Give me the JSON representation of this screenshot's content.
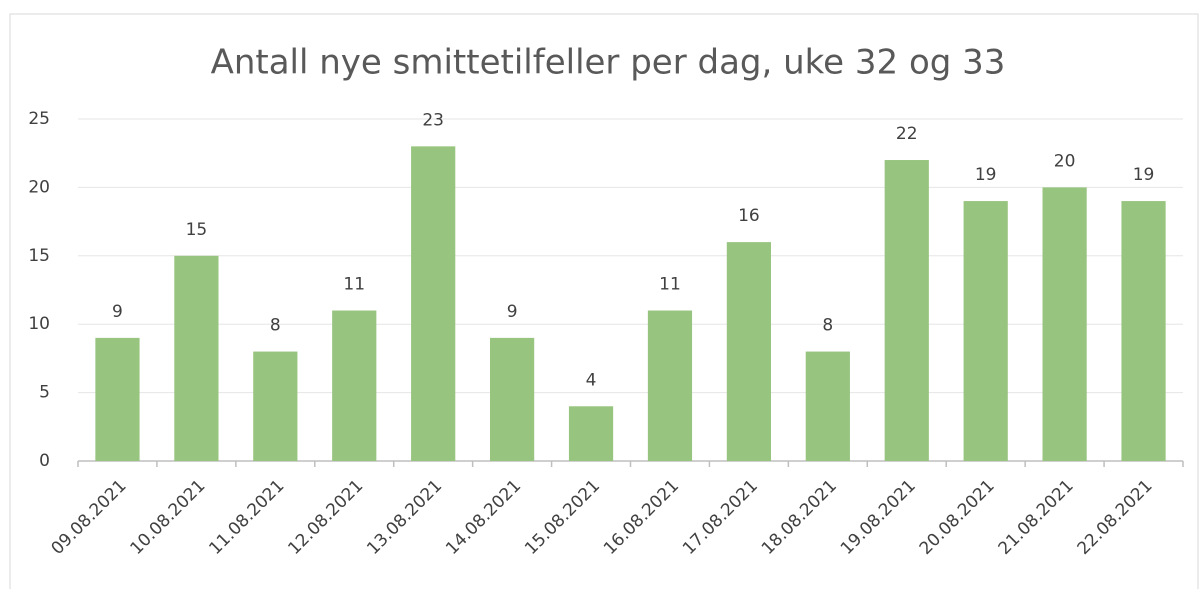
{
  "chart_data": {
    "type": "bar",
    "title": "Antall nye smittetilfeller per dag, uke 32 og 33",
    "categories": [
      "09.08.2021",
      "10.08.2021",
      "11.08.2021",
      "12.08.2021",
      "13.08.2021",
      "14.08.2021",
      "15.08.2021",
      "16.08.2021",
      "17.08.2021",
      "18.08.2021",
      "19.08.2021",
      "20.08.2021",
      "21.08.2021",
      "22.08.2021"
    ],
    "values": [
      9,
      15,
      8,
      11,
      23,
      9,
      4,
      11,
      16,
      8,
      22,
      19,
      20,
      19
    ],
    "color": "#97c47e",
    "ylim": [
      0,
      25
    ],
    "yticks": [
      0,
      5,
      10,
      15,
      20,
      25
    ],
    "grid": true,
    "data_labels": true
  }
}
